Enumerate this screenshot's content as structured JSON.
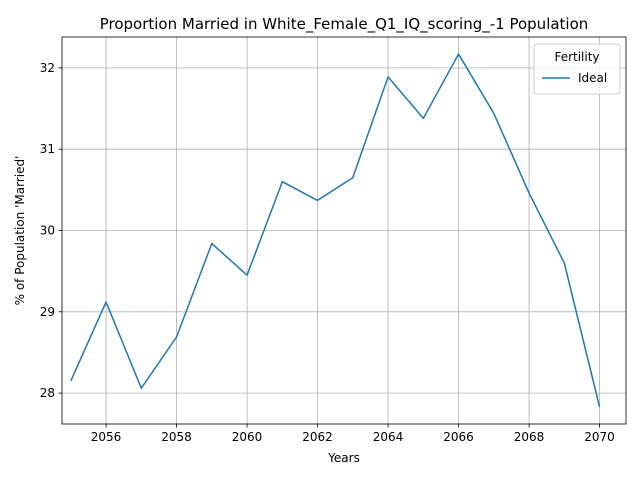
{
  "chart_data": {
    "type": "line",
    "title": "Proportion Married in White_Female_Q1_IQ_scoring_-1 Population",
    "xlabel": "Years",
    "ylabel": "% of Population 'Married'",
    "xlim": [
      2054.75,
      2070.75
    ],
    "ylim": [
      27.62,
      32.38
    ],
    "xticks": [
      2056,
      2058,
      2060,
      2062,
      2064,
      2066,
      2068,
      2070
    ],
    "yticks": [
      28,
      29,
      30,
      31,
      32
    ],
    "grid": true,
    "legend": {
      "title": "Fertility",
      "placement": "top-right"
    },
    "series": [
      {
        "name": "Ideal",
        "color": "#1f77b4",
        "x": [
          2055,
          2056,
          2057,
          2058,
          2059,
          2060,
          2061,
          2062,
          2063,
          2064,
          2065,
          2066,
          2067,
          2068,
          2069,
          2070
        ],
        "y": [
          28.15,
          29.12,
          28.06,
          28.69,
          29.84,
          29.45,
          30.6,
          30.37,
          30.65,
          31.89,
          31.38,
          32.17,
          31.44,
          30.46,
          29.6,
          27.83
        ]
      }
    ]
  }
}
